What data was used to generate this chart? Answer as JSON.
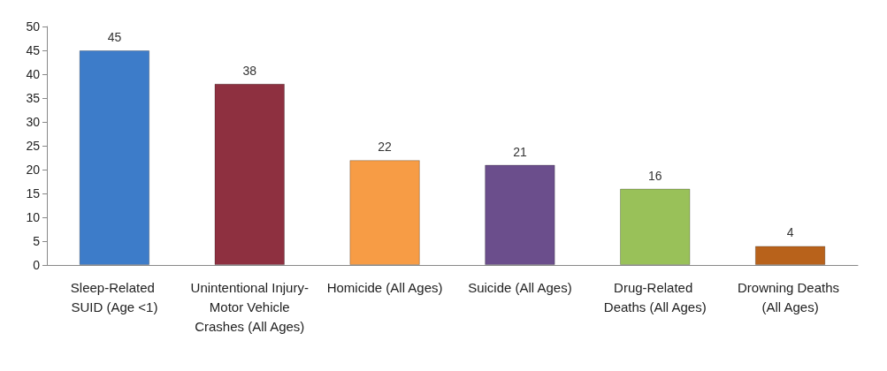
{
  "chart_data": {
    "type": "bar",
    "categories": [
      "Sleep-Related SUID (Age <1)",
      "Unintentional Injury- Motor Vehicle Crashes (All Ages)",
      "Homicide (All Ages)",
      "Suicide (All Ages)",
      "Drug-Related Deaths (All Ages)",
      "Drowning Deaths (All Ages)"
    ],
    "values": [
      45,
      38,
      22,
      21,
      16,
      4
    ],
    "colors": [
      "#3d7cc9",
      "#8e3040",
      "#f79c45",
      "#6b4e8c",
      "#99c159",
      "#b8621b"
    ],
    "ylim": [
      0,
      50
    ],
    "yticks": [
      0,
      5,
      10,
      15,
      20,
      25,
      30,
      35,
      40,
      45,
      50
    ],
    "grid": false,
    "data_labels": true
  }
}
